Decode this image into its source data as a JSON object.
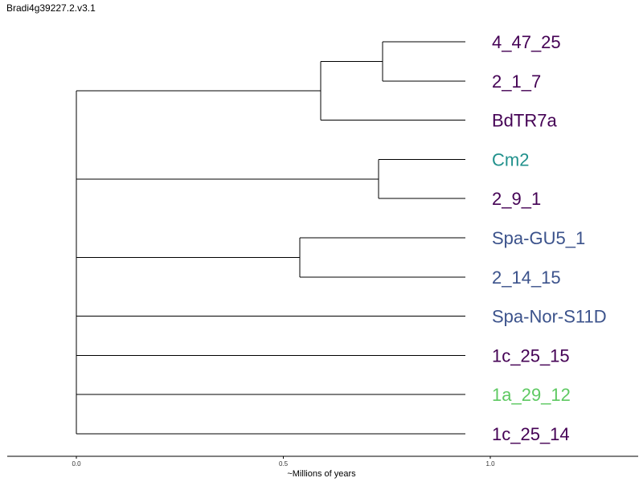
{
  "title": "Bradi4g39227.2.v3.1",
  "chart_data": {
    "type": "dendrogram",
    "xlabel": "~Millions of years",
    "xticks": [
      0.0,
      0.5,
      1.0
    ],
    "xtick_labels": [
      "0.0",
      "0.5",
      "1.0"
    ],
    "xlim": [
      -0.17,
      1.36
    ],
    "colors": {
      "dark_purple": "#440154",
      "teal": "#21918c",
      "blue": "#3b528b",
      "green": "#5ec962"
    },
    "tips": [
      {
        "label": "4_47_25",
        "color": "#440154"
      },
      {
        "label": "2_1_7",
        "color": "#440154"
      },
      {
        "label": "BdTR7a",
        "color": "#440154"
      },
      {
        "label": "Cm2",
        "color": "#21918c"
      },
      {
        "label": "2_9_1",
        "color": "#440154"
      },
      {
        "label": "Spa-GU5_1",
        "color": "#3b528b"
      },
      {
        "label": "2_14_15",
        "color": "#3b528b"
      },
      {
        "label": "Spa-Nor-S11D",
        "color": "#3b528b"
      },
      {
        "label": "1c_25_15",
        "color": "#440154"
      },
      {
        "label": "1a_29_12",
        "color": "#5ec962"
      },
      {
        "label": "1c_25_14",
        "color": "#440154"
      }
    ],
    "tip_age": 0.94,
    "clades": [
      {
        "members": [
          0,
          1
        ],
        "age": 0.74
      },
      {
        "members": [
          0,
          1,
          2
        ],
        "age": 0.59
      },
      {
        "members": [
          3,
          4
        ],
        "age": 0.73
      },
      {
        "members": [
          5,
          6
        ],
        "age": 0.54
      }
    ],
    "root_age": 0.0
  }
}
